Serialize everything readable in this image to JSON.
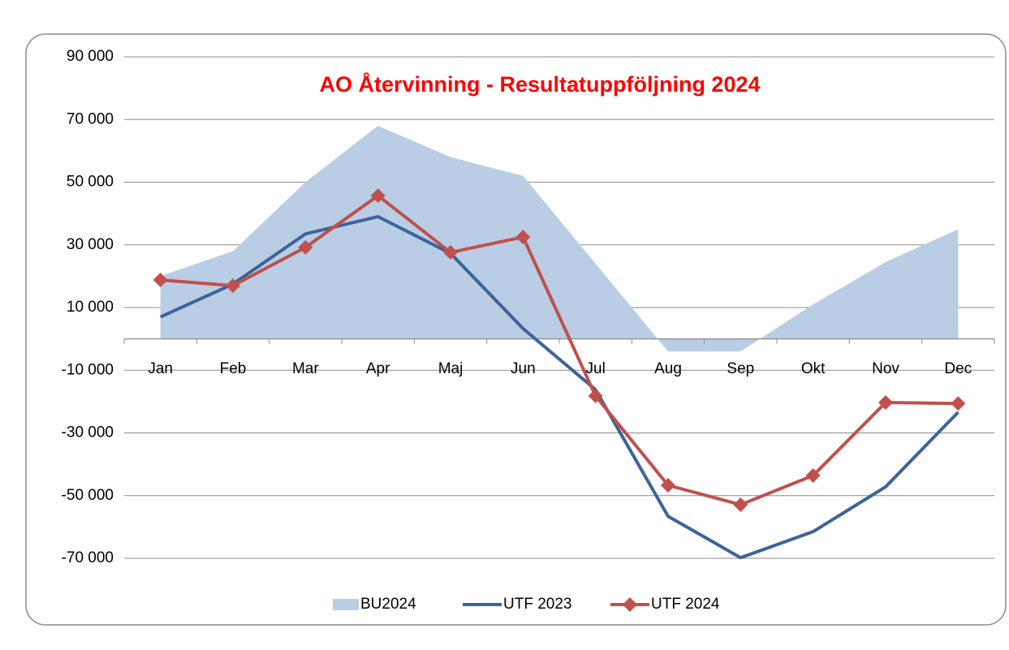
{
  "chart_data": {
    "type": "line",
    "title": "AO Återvinning - Resultatuppföljning  2024",
    "categories": [
      "Jan",
      "Feb",
      "Mar",
      "Apr",
      "Maj",
      "Jun",
      "Jul",
      "Aug",
      "Sep",
      "Okt",
      "Nov",
      "Dec"
    ],
    "series": [
      {
        "name": "BU2024",
        "type": "area",
        "color": "#b9cde5",
        "values": [
          20000,
          28000,
          50000,
          68000,
          58000,
          52000,
          24000,
          -4000,
          -4000,
          11000,
          24500,
          35000
        ]
      },
      {
        "name": "UTF 2023",
        "type": "line",
        "color": "#3c6498",
        "values": [
          7000,
          17500,
          33500,
          39000,
          27300,
          3300,
          -16200,
          -56600,
          -69800,
          -61500,
          -47200,
          -23400
        ]
      },
      {
        "name": "UTF 2024",
        "type": "line",
        "marker": "diamond",
        "color": "#c0504d",
        "values": [
          18800,
          17000,
          29200,
          45700,
          27600,
          32500,
          -18200,
          -46700,
          -52900,
          -43600,
          -20300,
          -20600
        ]
      }
    ],
    "ylim": [
      -70000,
      90000
    ],
    "yticks": [
      {
        "value": -70000,
        "label": "-70 000"
      },
      {
        "value": -50000,
        "label": "-50 000"
      },
      {
        "value": -30000,
        "label": "-30 000"
      },
      {
        "value": -10000,
        "label": "-10 000"
      },
      {
        "value": 10000,
        "label": "10 000"
      },
      {
        "value": 30000,
        "label": "30 000"
      },
      {
        "value": 50000,
        "label": "50 000"
      },
      {
        "value": 70000,
        "label": "70 000"
      },
      {
        "value": 90000,
        "label": "90 000"
      }
    ],
    "grid": true,
    "legend": "bottom"
  }
}
